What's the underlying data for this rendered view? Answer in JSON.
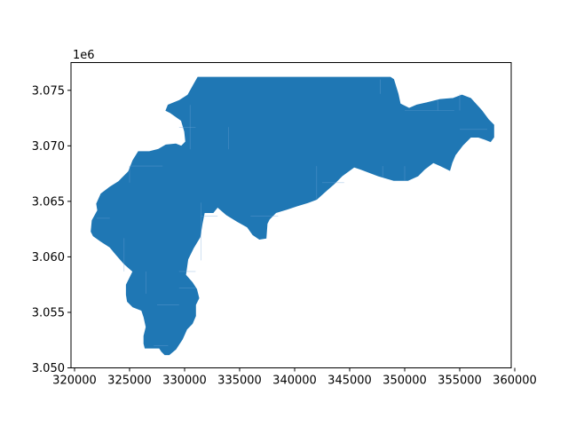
{
  "chart_data": {
    "type": "map",
    "title": "",
    "xlabel": "",
    "ylabel": "",
    "fill_color": "#1f77b4",
    "y_offset_label": "1e6",
    "xlim": [
      320000,
      360000
    ],
    "ylim": [
      3.05,
      3.0775
    ],
    "x_ticks": [
      320000,
      325000,
      330000,
      335000,
      340000,
      345000,
      350000,
      355000,
      360000
    ],
    "x_tick_labels": [
      "320000",
      "325000",
      "330000",
      "335000",
      "340000",
      "345000",
      "350000",
      "355000",
      "360000"
    ],
    "y_ticks": [
      3.05,
      3.055,
      3.06,
      3.065,
      3.07,
      3.075
    ],
    "y_tick_labels": [
      "3.050",
      "3.055",
      "3.060",
      "3.065",
      "3.070",
      "3.075"
    ],
    "region_outline": [
      [
        331200,
        3.0765
      ],
      [
        348700,
        3.0765
      ],
      [
        349000,
        3.0763
      ],
      [
        349400,
        3.075
      ],
      [
        349600,
        3.0741
      ],
      [
        350400,
        3.0737
      ],
      [
        351100,
        3.074
      ],
      [
        352000,
        3.0742
      ],
      [
        353200,
        3.0745
      ],
      [
        354400,
        3.0746
      ],
      [
        355200,
        3.0749
      ],
      [
        356000,
        3.0746
      ],
      [
        357000,
        3.0735
      ],
      [
        357600,
        3.0727
      ],
      [
        358100,
        3.0722
      ],
      [
        358100,
        3.0711
      ],
      [
        357800,
        3.0707
      ],
      [
        357300,
        3.0709
      ],
      [
        356700,
        3.0711
      ],
      [
        356000,
        3.0711
      ],
      [
        355300,
        3.0704
      ],
      [
        354600,
        3.0695
      ],
      [
        354300,
        3.0688
      ],
      [
        354100,
        3.0681
      ],
      [
        353300,
        3.0685
      ],
      [
        352600,
        3.0688
      ],
      [
        351800,
        3.0682
      ],
      [
        351200,
        3.0676
      ],
      [
        350300,
        3.0672
      ],
      [
        349000,
        3.0672
      ],
      [
        347600,
        3.0676
      ],
      [
        346000,
        3.0682
      ],
      [
        345400,
        3.0684
      ],
      [
        344300,
        3.0676
      ],
      [
        343600,
        3.0669
      ],
      [
        342900,
        3.0663
      ],
      [
        342000,
        3.0655
      ],
      [
        341200,
        3.0652
      ],
      [
        340200,
        3.0649
      ],
      [
        339300,
        3.0646
      ],
      [
        338300,
        3.0643
      ],
      [
        337700,
        3.0637
      ],
      [
        337500,
        3.0633
      ],
      [
        337400,
        3.062
      ],
      [
        336800,
        3.0619
      ],
      [
        336200,
        3.0623
      ],
      [
        335700,
        3.063
      ],
      [
        334800,
        3.0635
      ],
      [
        333800,
        3.0641
      ],
      [
        333000,
        3.0648
      ],
      [
        332600,
        3.0643
      ],
      [
        332000,
        3.0643
      ],
      [
        331800,
        3.0643
      ],
      [
        331600,
        3.0633
      ],
      [
        331400,
        3.0621
      ],
      [
        330800,
        3.0611
      ],
      [
        330300,
        3.0601
      ],
      [
        330100,
        3.0587
      ],
      [
        330700,
        3.058
      ],
      [
        331100,
        3.0574
      ],
      [
        331300,
        3.0566
      ],
      [
        331000,
        3.056
      ],
      [
        331000,
        3.055
      ],
      [
        330700,
        3.0543
      ],
      [
        330200,
        3.0538
      ],
      [
        329800,
        3.0529
      ],
      [
        329200,
        3.052
      ],
      [
        328600,
        3.0515
      ],
      [
        328200,
        3.0515
      ],
      [
        327900,
        3.0518
      ],
      [
        327700,
        3.0521
      ],
      [
        326800,
        3.0521
      ],
      [
        326400,
        3.0521
      ],
      [
        326300,
        3.0525
      ],
      [
        326300,
        3.0532
      ],
      [
        326500,
        3.054
      ],
      [
        326300,
        3.0549
      ],
      [
        326100,
        3.0555
      ],
      [
        325300,
        3.0558
      ],
      [
        324800,
        3.0563
      ],
      [
        324700,
        3.0569
      ],
      [
        324700,
        3.0578
      ],
      [
        325000,
        3.0584
      ],
      [
        325300,
        3.059
      ],
      [
        324500,
        3.0597
      ],
      [
        323800,
        3.0605
      ],
      [
        323200,
        3.0612
      ],
      [
        322400,
        3.0617
      ],
      [
        321700,
        3.0622
      ],
      [
        321500,
        3.0626
      ],
      [
        321600,
        3.0636
      ],
      [
        322100,
        3.0645
      ],
      [
        322000,
        3.0651
      ],
      [
        322400,
        3.066
      ],
      [
        323200,
        3.0666
      ],
      [
        324000,
        3.0671
      ],
      [
        324300,
        3.0674
      ],
      [
        324900,
        3.068
      ],
      [
        325300,
        3.069
      ],
      [
        325800,
        3.0698
      ],
      [
        326800,
        3.0698
      ],
      [
        327600,
        3.07
      ],
      [
        328300,
        3.0704
      ],
      [
        329200,
        3.0705
      ],
      [
        329700,
        3.0703
      ],
      [
        330100,
        3.0707
      ],
      [
        330000,
        3.0716
      ],
      [
        329700,
        3.0726
      ],
      [
        328700,
        3.0733
      ],
      [
        328300,
        3.0735
      ],
      [
        328500,
        3.074
      ],
      [
        329500,
        3.0744
      ],
      [
        330300,
        3.0749
      ],
      [
        330800,
        3.0758
      ]
    ]
  }
}
